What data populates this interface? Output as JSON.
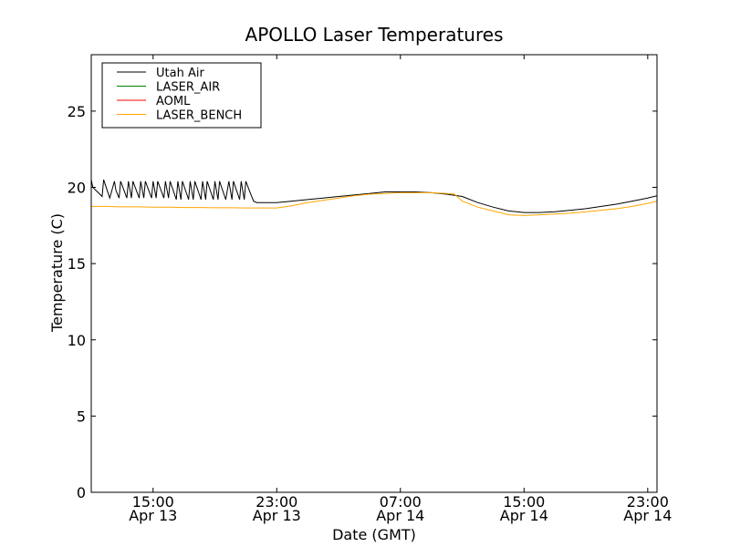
{
  "chart_data": {
    "type": "line",
    "title": "APOLLO Laser Temperatures",
    "xlabel": "Date (GMT)",
    "ylabel": "Temperature (C)",
    "xunit": "hours since Apr 13 11:00 GMT",
    "xlim": [
      0,
      36.6
    ],
    "ylim": [
      0,
      28.7
    ],
    "yticks": [
      0,
      5,
      10,
      15,
      20,
      25
    ],
    "xticks": [
      {
        "x": 4,
        "line1": "15:00",
        "line2": "Apr 13"
      },
      {
        "x": 12,
        "line1": "23:00",
        "line2": "Apr 13"
      },
      {
        "x": 20,
        "line1": "07:00",
        "line2": "Apr 14"
      },
      {
        "x": 28,
        "line1": "15:00",
        "line2": "Apr 14"
      },
      {
        "x": 36,
        "line1": "23:00",
        "line2": "Apr 14"
      }
    ],
    "legend_position": "top-left",
    "series": [
      {
        "name": "Utah Air",
        "color": "#000000",
        "x": [
          0.0,
          0.1,
          0.7,
          0.8,
          1.0,
          1.2,
          1.5,
          1.6,
          1.8,
          1.9,
          2.3,
          2.4,
          2.6,
          2.7,
          3.1,
          3.2,
          3.4,
          3.5,
          3.9,
          4.0,
          4.2,
          4.3,
          4.7,
          4.8,
          5.0,
          5.1,
          5.5,
          5.6,
          5.8,
          5.9,
          6.3,
          6.4,
          6.6,
          6.7,
          7.1,
          7.2,
          7.4,
          7.5,
          7.9,
          8.0,
          8.2,
          8.3,
          8.7,
          8.9,
          9.1,
          9.2,
          9.6,
          9.7,
          9.9,
          10.0,
          10.3,
          10.5,
          10.7,
          11.0,
          12.0,
          13.0,
          14.0,
          15.0,
          16.0,
          17.0,
          18.0,
          19.0,
          20.0,
          21.0,
          22.0,
          23.0,
          24.0,
          25.0,
          26.0,
          27.0,
          28.0,
          29.0,
          30.0,
          31.0,
          32.0,
          33.0,
          34.0,
          35.0,
          36.0,
          36.6
        ],
        "y": [
          20.5,
          20.0,
          19.4,
          20.5,
          19.9,
          19.3,
          20.4,
          19.8,
          19.3,
          20.4,
          19.3,
          20.4,
          19.3,
          20.4,
          19.3,
          20.4,
          19.3,
          20.4,
          19.3,
          20.4,
          19.3,
          20.4,
          19.3,
          20.4,
          19.3,
          20.4,
          19.2,
          20.4,
          19.2,
          20.4,
          19.2,
          20.4,
          19.2,
          20.4,
          19.2,
          20.4,
          19.2,
          20.4,
          19.2,
          20.4,
          19.2,
          20.4,
          19.2,
          20.4,
          19.2,
          20.4,
          19.2,
          20.4,
          19.2,
          20.4,
          19.6,
          19.1,
          19.0,
          19.0,
          19.0,
          19.1,
          19.2,
          19.3,
          19.4,
          19.5,
          19.6,
          19.7,
          19.7,
          19.7,
          19.65,
          19.55,
          19.4,
          19.0,
          18.7,
          18.45,
          18.35,
          18.35,
          18.4,
          18.5,
          18.6,
          18.75,
          18.9,
          19.1,
          19.3,
          19.45
        ]
      },
      {
        "name": "LASER_AIR",
        "color": "#008000",
        "x": [],
        "y": []
      },
      {
        "name": "AOML",
        "color": "#ff0000",
        "x": [],
        "y": []
      },
      {
        "name": "LASER_BENCH",
        "color": "#ffa500",
        "x": [
          0.0,
          1.0,
          2.0,
          3.0,
          4.0,
          5.0,
          6.0,
          7.0,
          8.0,
          9.0,
          10.0,
          11.0,
          12.0,
          13.0,
          14.0,
          15.0,
          16.0,
          17.0,
          18.0,
          19.0,
          20.0,
          21.0,
          22.0,
          23.0,
          23.5,
          24.0,
          25.0,
          26.0,
          27.0,
          28.0,
          29.0,
          30.0,
          31.0,
          32.0,
          33.0,
          34.0,
          35.0,
          36.0,
          36.6
        ],
        "y": [
          18.75,
          18.75,
          18.72,
          18.72,
          18.7,
          18.7,
          18.68,
          18.68,
          18.66,
          18.66,
          18.65,
          18.65,
          18.65,
          18.8,
          19.0,
          19.15,
          19.3,
          19.45,
          19.55,
          19.6,
          19.65,
          19.65,
          19.65,
          19.6,
          19.55,
          19.1,
          18.7,
          18.45,
          18.2,
          18.15,
          18.2,
          18.25,
          18.3,
          18.4,
          18.5,
          18.6,
          18.75,
          18.95,
          19.1
        ]
      }
    ]
  }
}
